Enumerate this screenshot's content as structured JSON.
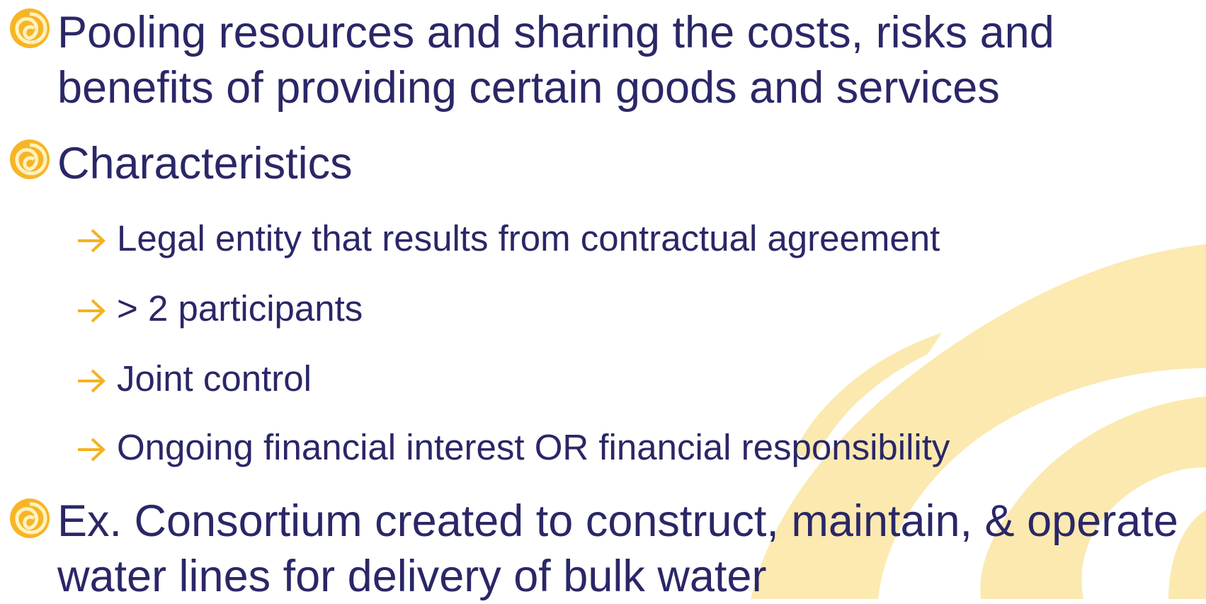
{
  "bullets": [
    {
      "text": "Pooling resources and sharing the costs, risks and benefits of providing certain goods and services"
    },
    {
      "text": "Characteristics",
      "subitems": [
        "Legal entity that results from contractual agreement",
        "> 2 participants",
        "Joint control",
        "Ongoing financial interest OR financial responsibility"
      ]
    },
    {
      "text": "Ex. Consortium created to construct, maintain, & operate water lines for delivery of bulk water"
    }
  ]
}
